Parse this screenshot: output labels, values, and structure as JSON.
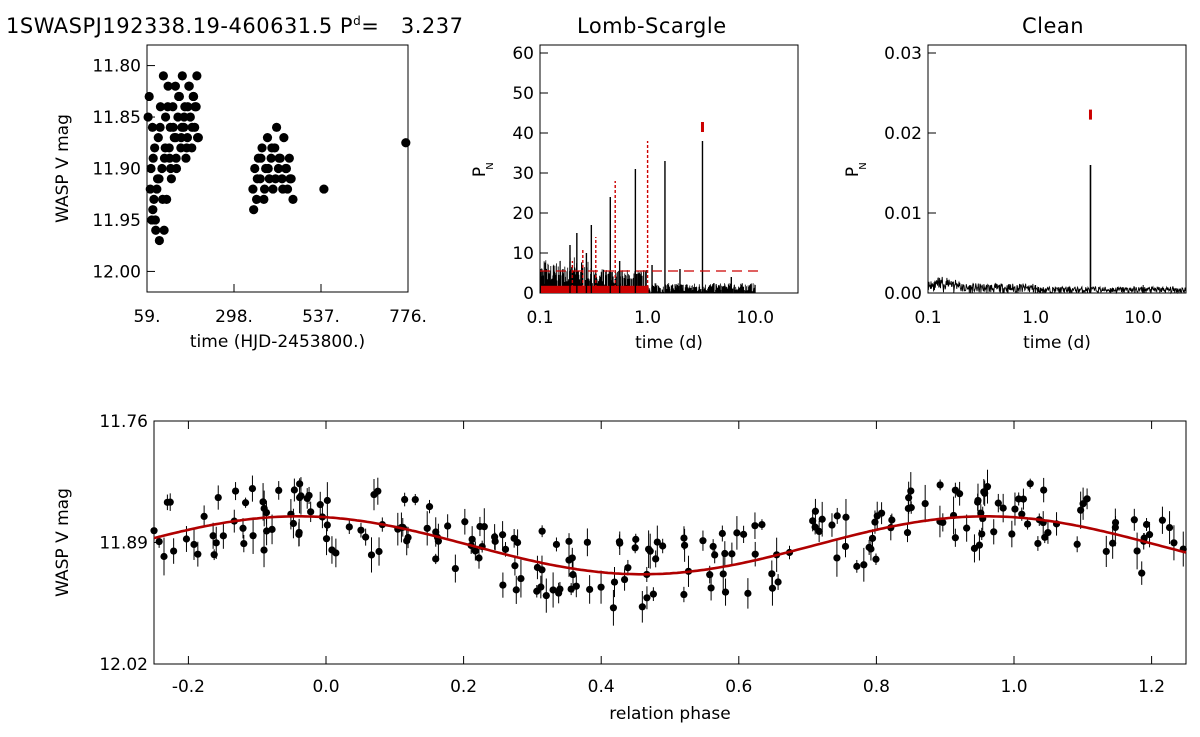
{
  "header": {
    "object_id": "1SWASPJ192338.19-460631.5",
    "period_label": "P",
    "period_superscript": "d",
    "period_equals": "=",
    "period_value": "3.237",
    "ls_title": "Lomb-Scargle",
    "clean_title": "Clean"
  },
  "colors": {
    "data": "#000000",
    "fit": "#b00000",
    "ls_red": "#cc0000"
  },
  "chart_data": [
    {
      "id": "lightcurve",
      "type": "scatter",
      "xlabel": "time (HJD-2453800.)",
      "ylabel": "WASP V mag",
      "xlim": [
        59,
        776
      ],
      "ylim": [
        12.02,
        11.78
      ],
      "xticks": [
        "59.",
        "298.",
        "537.",
        "776."
      ],
      "yticks": [
        "11.80",
        "11.85",
        "11.90",
        "11.95",
        "12.00"
      ],
      "x": [
        65,
        70,
        72,
        74,
        78,
        80,
        83,
        86,
        90,
        93,
        96,
        100,
        104,
        107,
        110,
        113,
        117,
        120,
        123,
        126,
        130,
        134,
        137,
        140,
        144,
        148,
        152,
        156,
        160,
        163,
        166,
        170,
        174,
        178,
        182,
        186,
        190,
        194,
        198,
        68,
        76,
        82,
        88,
        95,
        102,
        109,
        116,
        124,
        131,
        139,
        146,
        153,
        161,
        168,
        175,
        183,
        191,
        196,
        200,
        62,
        75,
        92,
        106,
        121,
        138,
        155,
        171,
        187,
        350,
        355,
        360,
        365,
        370,
        375,
        380,
        385,
        390,
        395,
        400,
        405,
        410,
        415,
        420,
        425,
        430,
        435,
        440,
        445,
        450,
        455,
        460,
        352,
        362,
        372,
        382,
        392,
        402,
        412,
        422,
        432,
        442,
        452,
        545,
        770
      ],
      "y": [
        11.83,
        11.9,
        11.95,
        11.86,
        11.93,
        11.88,
        11.96,
        11.92,
        11.87,
        11.97,
        11.84,
        11.9,
        11.81,
        11.89,
        11.85,
        11.93,
        11.82,
        11.88,
        11.86,
        11.91,
        11.84,
        11.87,
        11.82,
        11.9,
        11.85,
        11.83,
        11.88,
        11.81,
        11.86,
        11.84,
        11.89,
        11.87,
        11.82,
        11.85,
        11.88,
        11.83,
        11.86,
        11.84,
        11.87,
        11.92,
        11.89,
        11.95,
        11.91,
        11.86,
        11.93,
        11.88,
        11.84,
        11.9,
        11.86,
        11.89,
        11.83,
        11.87,
        11.85,
        11.88,
        11.82,
        11.86,
        11.84,
        11.81,
        11.87,
        11.85,
        11.94,
        11.91,
        11.96,
        11.89,
        11.87,
        11.86,
        11.84,
        11.83,
        11.92,
        11.9,
        11.93,
        11.89,
        11.91,
        11.88,
        11.93,
        11.9,
        11.87,
        11.91,
        11.89,
        11.92,
        11.88,
        11.86,
        11.9,
        11.89,
        11.91,
        11.87,
        11.9,
        11.92,
        11.89,
        11.91,
        11.93,
        11.94,
        11.91,
        11.89,
        11.92,
        11.9,
        11.88,
        11.91,
        11.89,
        11.92,
        11.9,
        11.91,
        11.92,
        11.875
      ]
    },
    {
      "id": "lomb-scargle",
      "type": "line",
      "xlabel": "time (d)",
      "ylabel": "P",
      "ylabel_sub": "N",
      "xscale": "log",
      "xlim": [
        0.1,
        25
      ],
      "ylim": [
        0,
        62
      ],
      "xticks": [
        "0.1",
        "1.0",
        "10.0"
      ],
      "yticks": [
        "0",
        "10",
        "20",
        "30",
        "40",
        "50",
        "60"
      ],
      "threshold": 5.5,
      "peak_marker": {
        "x": 3.237,
        "y": 41.5
      },
      "black_peaks": [
        [
          0.22,
          15
        ],
        [
          0.3,
          17
        ],
        [
          0.45,
          24
        ],
        [
          0.77,
          31
        ],
        [
          1.45,
          33
        ],
        [
          3.237,
          38
        ],
        [
          0.19,
          12
        ],
        [
          0.27,
          10
        ],
        [
          0.55,
          8
        ],
        [
          1.1,
          7
        ],
        [
          2.0,
          6
        ],
        [
          6.0,
          4
        ]
      ],
      "red_peaks": [
        [
          0.5,
          28
        ],
        [
          1.0,
          38
        ],
        [
          0.33,
          14
        ],
        [
          0.25,
          11
        ],
        [
          0.2,
          8
        ]
      ]
    },
    {
      "id": "clean",
      "type": "line",
      "xlabel": "time (d)",
      "ylabel": "P",
      "ylabel_sub": "N",
      "xscale": "log",
      "xlim": [
        0.1,
        25
      ],
      "ylim": [
        0,
        0.031
      ],
      "xticks": [
        "0.1",
        "1.0",
        "10.0"
      ],
      "yticks": [
        "0.00",
        "0.01",
        "0.02",
        "0.03"
      ],
      "peak": {
        "x": 3.237,
        "y": 0.016
      },
      "peak_marker": {
        "x": 3.237,
        "y": 0.0223
      }
    },
    {
      "id": "phase-folded",
      "type": "scatter",
      "xlabel": "relation phase",
      "ylabel": "WASP V mag",
      "xlim": [
        -0.25,
        1.25
      ],
      "ylim": [
        12.02,
        11.76
      ],
      "xticks": [
        "-0.2",
        "0.0",
        "0.2",
        "0.4",
        "0.6",
        "0.8",
        "1.0",
        "1.2"
      ],
      "yticks": [
        "11.76",
        "11.89",
        "12.02"
      ],
      "fit": {
        "mean": 11.893,
        "amplitude": 0.031,
        "phase_min": 0.46
      }
    }
  ]
}
